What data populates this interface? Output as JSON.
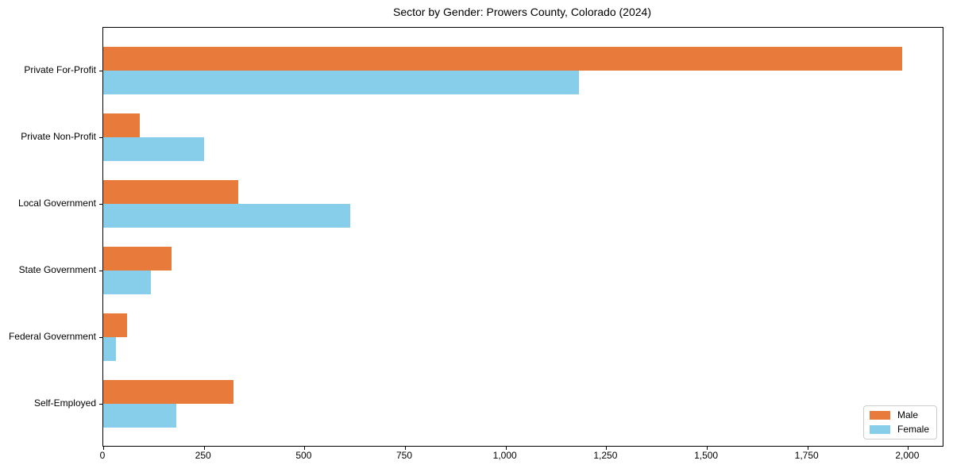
{
  "chart_data": {
    "type": "bar",
    "orientation": "horizontal",
    "title": "Sector by Gender: Prowers County, Colorado (2024)",
    "categories": [
      "Private For-Profit",
      "Private Non-Profit",
      "Local Government",
      "State Government",
      "Federal Government",
      "Self-Employed"
    ],
    "series": [
      {
        "name": "Male",
        "color": "#e87a3c",
        "values": [
          1985,
          91,
          336,
          170,
          60,
          324
        ]
      },
      {
        "name": "Female",
        "color": "#87ceeb",
        "values": [
          1182,
          251,
          613,
          119,
          32,
          182
        ]
      }
    ],
    "xlabel": "",
    "ylabel": "",
    "xlim": [
      0,
      2086
    ],
    "xticks": [
      {
        "value": 0,
        "label": "0"
      },
      {
        "value": 250,
        "label": "250"
      },
      {
        "value": 500,
        "label": "500"
      },
      {
        "value": 750,
        "label": "750"
      },
      {
        "value": 1000,
        "label": "1,000"
      },
      {
        "value": 1250,
        "label": "1,250"
      },
      {
        "value": 1500,
        "label": "1,500"
      },
      {
        "value": 1750,
        "label": "1,750"
      },
      {
        "value": 2000,
        "label": "2,000"
      }
    ],
    "grid": false,
    "legend": {
      "position": "lower right",
      "entries": [
        "Male",
        "Female"
      ]
    },
    "colors": {
      "male": "#e87a3c",
      "female": "#87ceeb",
      "axis": "#000000",
      "legend_border": "#cccccc",
      "background": "#ffffff"
    }
  }
}
